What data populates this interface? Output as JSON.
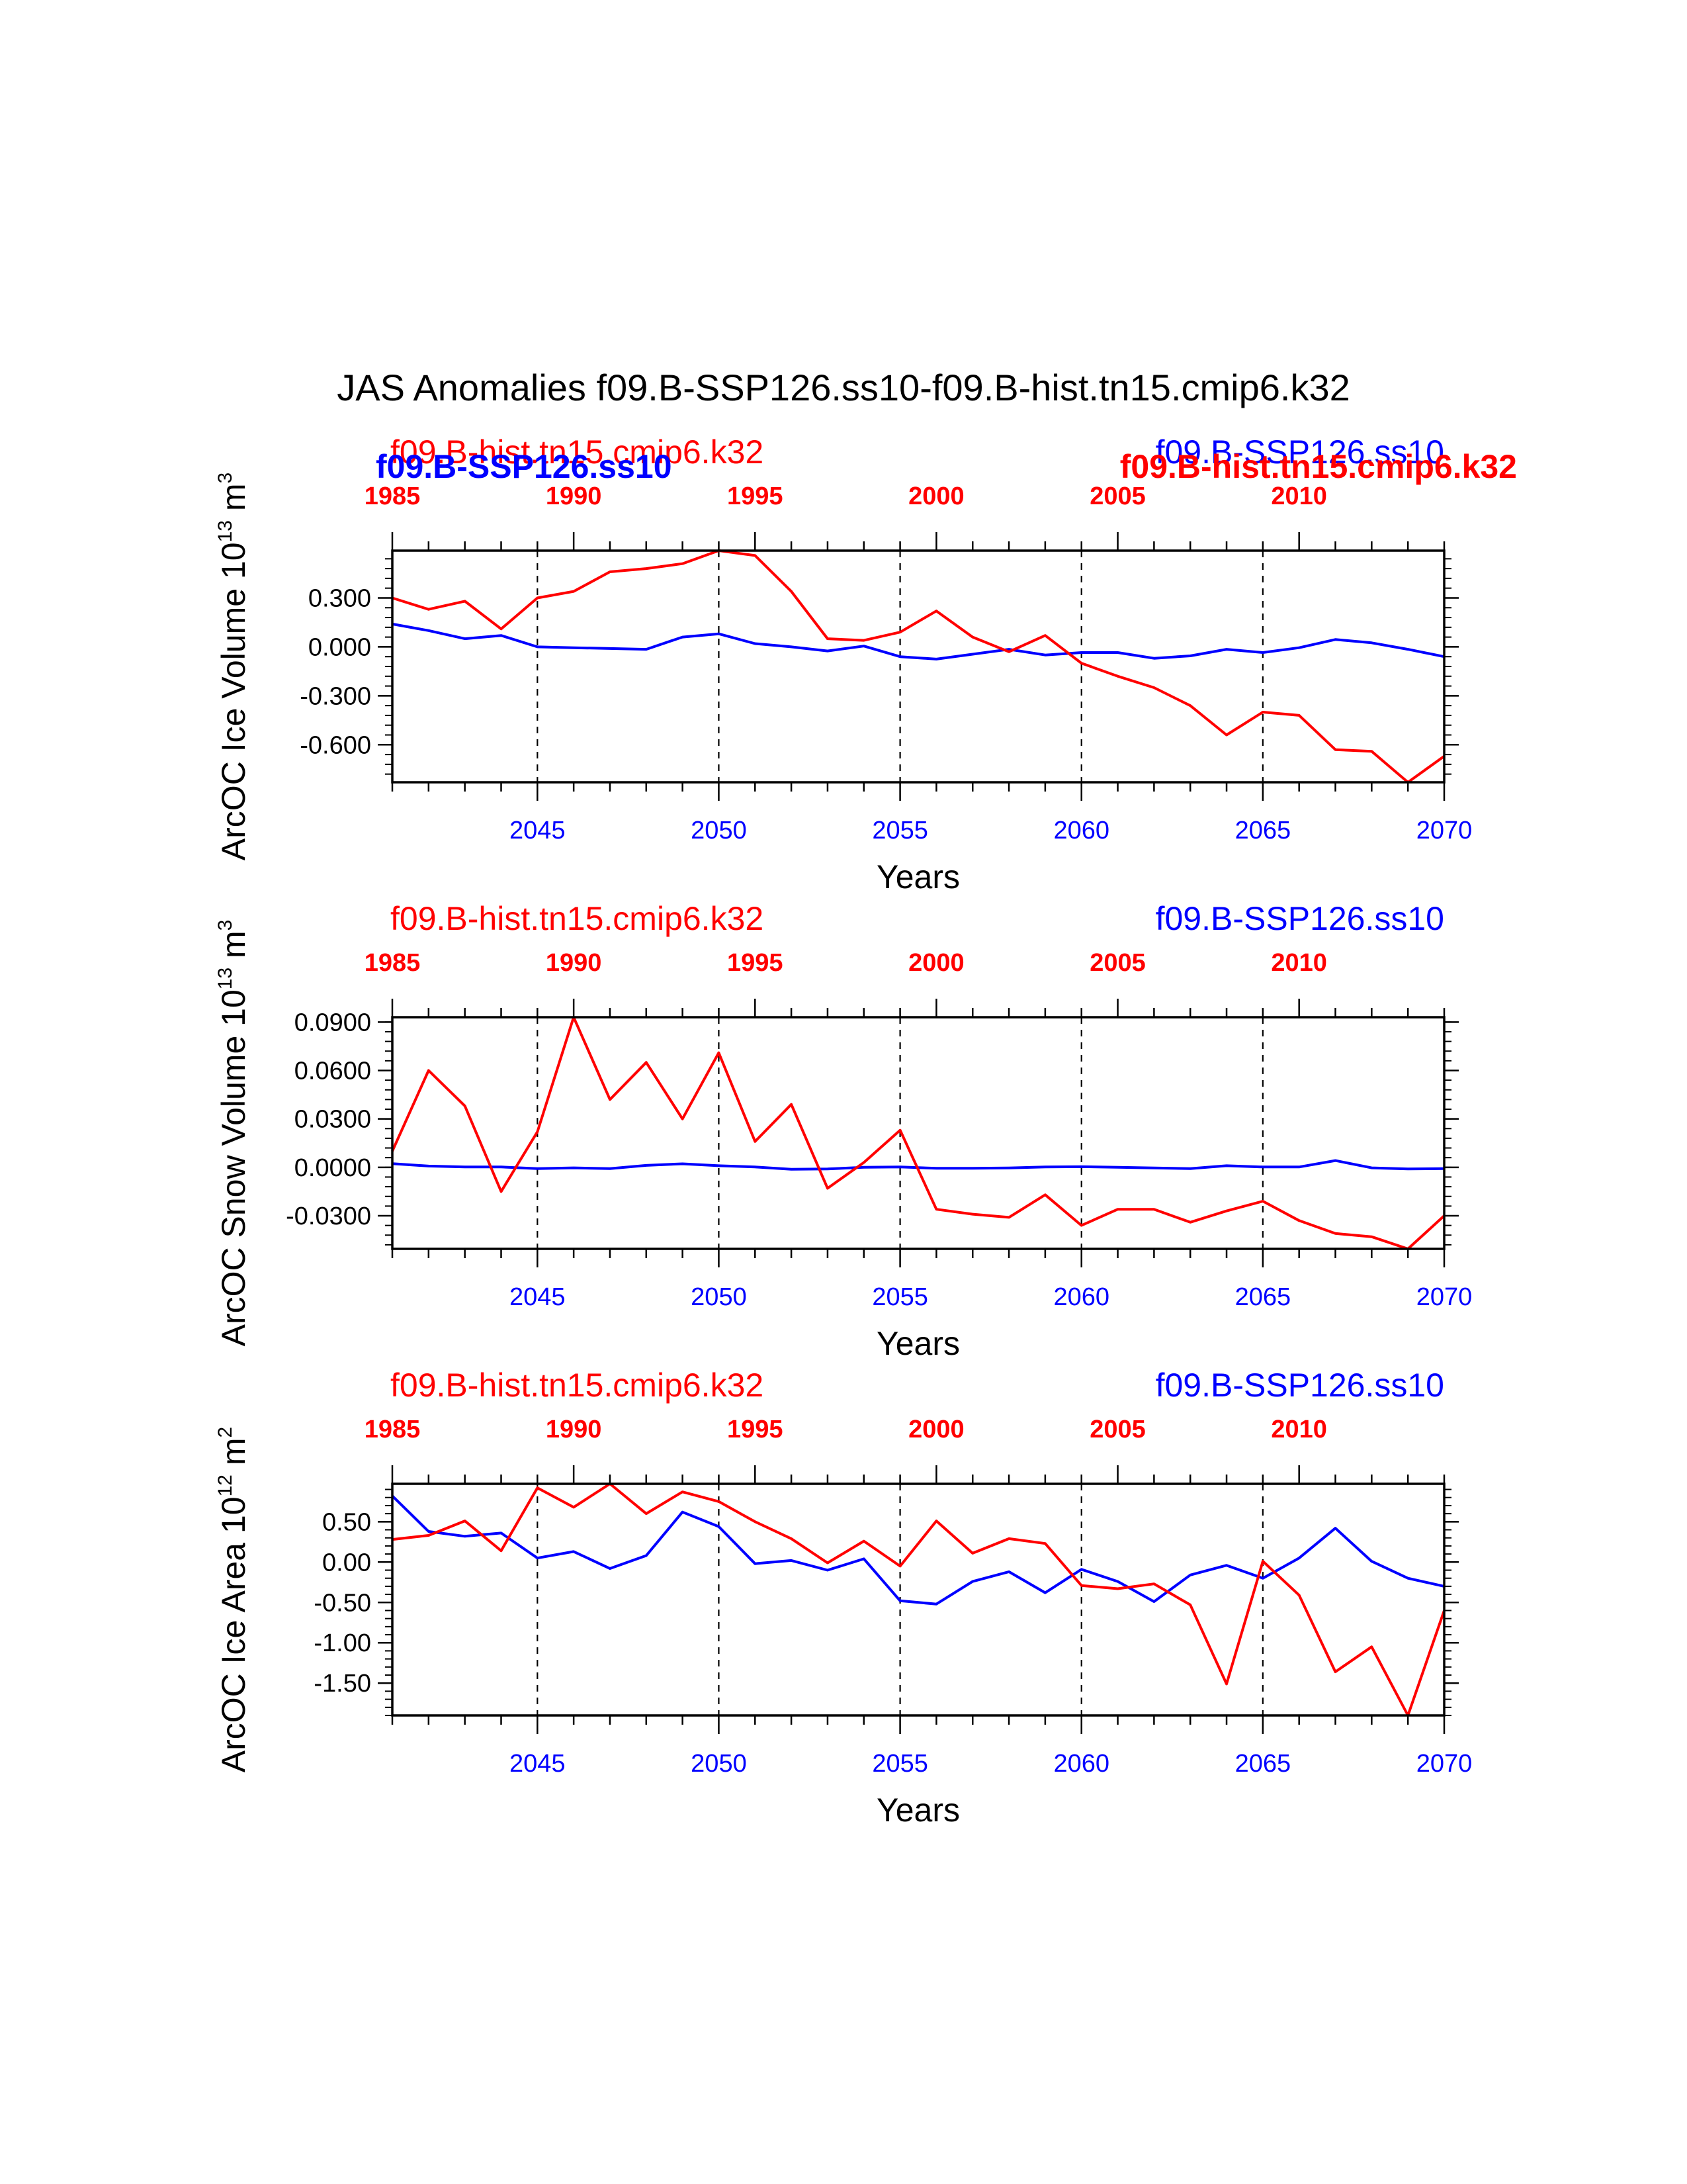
{
  "title": "JAS Anomalies f09.B-SSP126.ss10-f09.B-hist.tn15.cmip6.k32",
  "colors": {
    "ssp": "#0000ff",
    "hist": "#ff0000",
    "axes": "#000000"
  },
  "chart_data": [
    {
      "type": "line",
      "ylabel": "ArcOC Ice Volume 10",
      "ylabel_exp": "13",
      "ylabel_unit": " m",
      "ylabel_unit_exp": "3",
      "xlabel": "Years",
      "x_bottom": [
        2041,
        2042,
        2043,
        2044,
        2045,
        2046,
        2047,
        2048,
        2049,
        2050,
        2051,
        2052,
        2053,
        2054,
        2055,
        2056,
        2057,
        2058,
        2059,
        2060,
        2061,
        2062,
        2063,
        2064,
        2065,
        2066,
        2067,
        2068,
        2069,
        2070
      ],
      "x_top": [
        1985,
        1986,
        1987,
        1988,
        1989,
        1990,
        1991,
        1992,
        1993,
        1994,
        1995,
        1996,
        1997,
        1998,
        1999,
        2000,
        2001,
        2002,
        2003,
        2004,
        2005,
        2006,
        2007,
        2008,
        2009,
        2010,
        2011,
        2012,
        2013,
        2014
      ],
      "xlim_bottom": [
        2041,
        2070
      ],
      "xlim_top": [
        1985,
        2014
      ],
      "bottom_ticks": [
        "2045",
        "2050",
        "2055",
        "2060",
        "2065",
        "2070"
      ],
      "top_ticks": [
        "1985",
        "1990",
        "1995",
        "2000",
        "2005",
        "2010"
      ],
      "ylim": [
        -0.83,
        0.59
      ],
      "yticks": [
        0.3,
        0.0,
        -0.3,
        -0.6
      ],
      "ytick_labels": [
        "0.300",
        "0.000",
        "-0.300",
        "-0.600"
      ],
      "label_left": "f09.B-hist.tn15.cmip6.k32",
      "label_right": "f09.B-SSP126.ss10",
      "overlap_left": "f09.B-SSP126.ss10",
      "overlap_right": "f09.B-hist.tn15.cmip6.k32",
      "series": [
        {
          "name": "f09.B-SSP126.ss10",
          "color": "#0000ff",
          "axis": "bottom",
          "values": [
            0.14,
            0.1,
            0.05,
            0.07,
            0.0,
            -0.005,
            -0.01,
            -0.015,
            0.06,
            0.08,
            0.02,
            0.0,
            -0.025,
            0.005,
            -0.06,
            -0.075,
            -0.045,
            -0.015,
            -0.05,
            -0.035,
            -0.035,
            -0.07,
            -0.055,
            -0.015,
            -0.035,
            -0.005,
            0.045,
            0.025,
            -0.015,
            -0.06
          ]
        },
        {
          "name": "f09.B-hist.tn15.cmip6.k32",
          "color": "#ff0000",
          "axis": "top",
          "values": [
            0.3,
            0.23,
            0.28,
            0.11,
            0.3,
            0.34,
            0.46,
            0.48,
            0.51,
            0.59,
            0.56,
            0.34,
            0.05,
            0.04,
            0.09,
            0.22,
            0.06,
            -0.03,
            0.07,
            -0.1,
            -0.18,
            -0.25,
            -0.36,
            -0.54,
            -0.4,
            -0.42,
            -0.63,
            -0.64,
            -0.83,
            -0.67
          ]
        }
      ]
    },
    {
      "type": "line",
      "ylabel": "ArcOC Snow Volume 10",
      "ylabel_exp": "13",
      "ylabel_unit": " m",
      "ylabel_unit_exp": "3",
      "xlabel": "Years",
      "x_bottom": [
        2041,
        2042,
        2043,
        2044,
        2045,
        2046,
        2047,
        2048,
        2049,
        2050,
        2051,
        2052,
        2053,
        2054,
        2055,
        2056,
        2057,
        2058,
        2059,
        2060,
        2061,
        2062,
        2063,
        2064,
        2065,
        2066,
        2067,
        2068,
        2069,
        2070
      ],
      "x_top": [
        1985,
        1986,
        1987,
        1988,
        1989,
        1990,
        1991,
        1992,
        1993,
        1994,
        1995,
        1996,
        1997,
        1998,
        1999,
        2000,
        2001,
        2002,
        2003,
        2004,
        2005,
        2006,
        2007,
        2008,
        2009,
        2010,
        2011,
        2012,
        2013,
        2014
      ],
      "xlim_bottom": [
        2041,
        2070
      ],
      "xlim_top": [
        1985,
        2014
      ],
      "bottom_ticks": [
        "2045",
        "2050",
        "2055",
        "2060",
        "2065",
        "2070"
      ],
      "top_ticks": [
        "1985",
        "1990",
        "1995",
        "2000",
        "2005",
        "2010"
      ],
      "ylim": [
        -0.0505,
        0.093
      ],
      "yticks": [
        0.09,
        0.06,
        0.03,
        0.0,
        -0.03
      ],
      "ytick_labels": [
        "0.0900",
        "0.0600",
        "0.0300",
        "0.0000",
        "-0.0300"
      ],
      "label_left": "f09.B-hist.tn15.cmip6.k32",
      "label_right": "f09.B-SSP126.ss10",
      "series": [
        {
          "name": "f09.B-SSP126.ss10",
          "color": "#0000ff",
          "axis": "bottom",
          "values": [
            0.0023,
            0.0008,
            0.0002,
            0.0002,
            -0.0008,
            -0.0003,
            -0.0008,
            0.0012,
            0.0022,
            0.001,
            0.0002,
            -0.0012,
            -0.001,
            0.0,
            0.0002,
            -0.0006,
            -0.0006,
            -0.0004,
            0.0002,
            0.0004,
            0.0,
            -0.0004,
            -0.0008,
            0.001,
            0.0002,
            0.0002,
            0.0042,
            -0.0003,
            -0.001,
            -0.0008
          ]
        },
        {
          "name": "f09.B-hist.tn15.cmip6.k32",
          "color": "#ff0000",
          "axis": "top",
          "values": [
            0.01,
            0.06,
            0.038,
            -0.015,
            0.022,
            0.093,
            0.042,
            0.065,
            0.03,
            0.071,
            0.016,
            0.039,
            -0.013,
            0.003,
            0.023,
            -0.026,
            -0.029,
            -0.031,
            -0.017,
            -0.036,
            -0.026,
            -0.026,
            -0.034,
            -0.027,
            -0.021,
            -0.033,
            -0.041,
            -0.043,
            -0.0505,
            -0.03
          ]
        }
      ]
    },
    {
      "type": "line",
      "ylabel": "ArcOC Ice Area 10",
      "ylabel_exp": "12",
      "ylabel_unit": " m",
      "ylabel_unit_exp": "2",
      "xlabel": "Years",
      "x_bottom": [
        2041,
        2042,
        2043,
        2044,
        2045,
        2046,
        2047,
        2048,
        2049,
        2050,
        2051,
        2052,
        2053,
        2054,
        2055,
        2056,
        2057,
        2058,
        2059,
        2060,
        2061,
        2062,
        2063,
        2064,
        2065,
        2066,
        2067,
        2068,
        2069,
        2070
      ],
      "x_top": [
        1985,
        1986,
        1987,
        1988,
        1989,
        1990,
        1991,
        1992,
        1993,
        1994,
        1995,
        1996,
        1997,
        1998,
        1999,
        2000,
        2001,
        2002,
        2003,
        2004,
        2005,
        2006,
        2007,
        2008,
        2009,
        2010,
        2011,
        2012,
        2013,
        2014
      ],
      "xlim_bottom": [
        2041,
        2070
      ],
      "xlim_top": [
        1985,
        2014
      ],
      "bottom_ticks": [
        "2045",
        "2050",
        "2055",
        "2060",
        "2065",
        "2070"
      ],
      "top_ticks": [
        "1985",
        "1990",
        "1995",
        "2000",
        "2005",
        "2010"
      ],
      "ylim": [
        -1.9,
        0.97
      ],
      "yticks": [
        0.5,
        0.0,
        -0.5,
        -1.0,
        -1.5
      ],
      "ytick_labels": [
        "0.50",
        "0.00",
        "-0.50",
        "-1.00",
        "-1.50"
      ],
      "label_left": "f09.B-hist.tn15.cmip6.k32",
      "label_right": "f09.B-SSP126.ss10",
      "series": [
        {
          "name": "f09.B-SSP126.ss10",
          "color": "#0000ff",
          "axis": "bottom",
          "values": [
            0.82,
            0.38,
            0.32,
            0.36,
            0.05,
            0.13,
            -0.08,
            0.08,
            0.62,
            0.44,
            -0.02,
            0.02,
            -0.1,
            0.04,
            -0.48,
            -0.52,
            -0.24,
            -0.12,
            -0.38,
            -0.09,
            -0.24,
            -0.49,
            -0.16,
            -0.04,
            -0.2,
            0.05,
            0.42,
            0.01,
            -0.2,
            -0.3
          ]
        },
        {
          "name": "f09.B-hist.tn15.cmip6.k32",
          "color": "#ff0000",
          "axis": "top",
          "values": [
            0.28,
            0.33,
            0.51,
            0.14,
            0.92,
            0.68,
            0.97,
            0.6,
            0.87,
            0.75,
            0.5,
            0.29,
            -0.01,
            0.26,
            -0.05,
            0.51,
            0.11,
            0.29,
            0.23,
            -0.29,
            -0.33,
            -0.27,
            -0.53,
            -1.51,
            0.01,
            -0.41,
            -1.36,
            -1.05,
            -1.9,
            -0.6
          ]
        }
      ]
    }
  ]
}
